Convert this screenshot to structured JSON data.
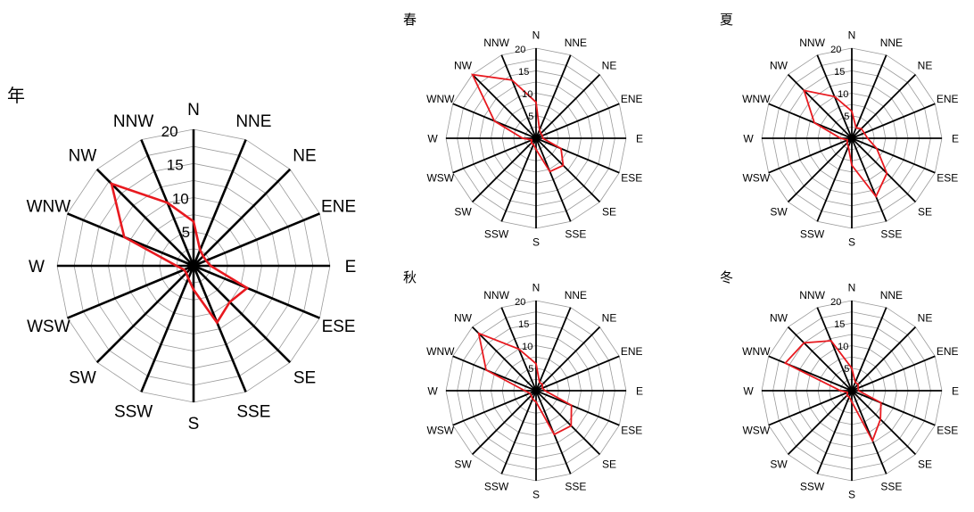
{
  "chart_data": [
    {
      "type": "radar",
      "title": "年",
      "directions": [
        "N",
        "NNE",
        "NE",
        "ENE",
        "E",
        "ESE",
        "SE",
        "SSE",
        "S",
        "SSW",
        "SW",
        "WSW",
        "W",
        "WNW",
        "NW",
        "NNW"
      ],
      "rticks": [
        "0",
        "5",
        "10",
        "15",
        "20"
      ],
      "rlim": [
        0,
        20
      ],
      "values": [
        6.5,
        2.5,
        2.0,
        2.0,
        2.5,
        8.5,
        7.5,
        9.0,
        3.5,
        2.0,
        1.5,
        1.5,
        2.5,
        11.0,
        17.0,
        10.0
      ]
    },
    {
      "type": "radar",
      "title": "春",
      "directions": [
        "N",
        "NNE",
        "NE",
        "ENE",
        "E",
        "ESE",
        "SE",
        "SSE",
        "S",
        "SSW",
        "SW",
        "WSW",
        "W",
        "WNW",
        "NW",
        "NNW"
      ],
      "rticks": [
        "0",
        "5",
        "10",
        "15",
        "20"
      ],
      "rlim": [
        0,
        20
      ],
      "values": [
        8.0,
        2.0,
        1.5,
        1.5,
        1.5,
        6.0,
        8.5,
        8.0,
        2.5,
        1.5,
        1.5,
        1.0,
        3.0,
        10.0,
        20.0,
        14.0
      ]
    },
    {
      "type": "radar",
      "title": "夏",
      "directions": [
        "N",
        "NNE",
        "NE",
        "ENE",
        "E",
        "ESE",
        "SE",
        "SSE",
        "S",
        "SSW",
        "SW",
        "WSW",
        "W",
        "WNW",
        "NW",
        "NNW"
      ],
      "rticks": [
        "0",
        "5",
        "10",
        "15",
        "20"
      ],
      "rlim": [
        0,
        20
      ],
      "values": [
        6.0,
        2.5,
        3.0,
        3.0,
        3.5,
        6.0,
        11.0,
        14.0,
        6.0,
        2.0,
        1.5,
        1.0,
        2.5,
        9.0,
        15.0,
        10.0
      ]
    },
    {
      "type": "radar",
      "title": "秋",
      "directions": [
        "N",
        "NNE",
        "NE",
        "ENE",
        "E",
        "ESE",
        "SE",
        "SSE",
        "S",
        "SSW",
        "SW",
        "WSW",
        "W",
        "WNW",
        "NW",
        "NNW"
      ],
      "rticks": [
        "0",
        "5",
        "10",
        "15",
        "20"
      ],
      "rlim": [
        0,
        20
      ],
      "values": [
        6.0,
        2.0,
        2.0,
        1.5,
        2.0,
        8.5,
        11.0,
        10.5,
        2.5,
        2.0,
        1.5,
        1.5,
        2.5,
        12.0,
        18.0,
        10.0
      ]
    },
    {
      "type": "radar",
      "title": "冬",
      "directions": [
        "N",
        "NNE",
        "NE",
        "ENE",
        "E",
        "ESE",
        "SE",
        "SSE",
        "S",
        "SSW",
        "SW",
        "WSW",
        "W",
        "WNW",
        "NW",
        "NNW"
      ],
      "rticks": [
        "0",
        "5",
        "10",
        "15",
        "20"
      ],
      "rlim": [
        0,
        20
      ],
      "values": [
        5.0,
        2.0,
        2.0,
        1.5,
        1.5,
        7.0,
        9.0,
        12.0,
        2.5,
        1.5,
        1.5,
        1.0,
        2.5,
        16.0,
        15.0,
        12.0
      ]
    }
  ],
  "colors": {
    "series": "#e8191f",
    "spokes": "#000000",
    "rings": "#9a9a9a"
  }
}
